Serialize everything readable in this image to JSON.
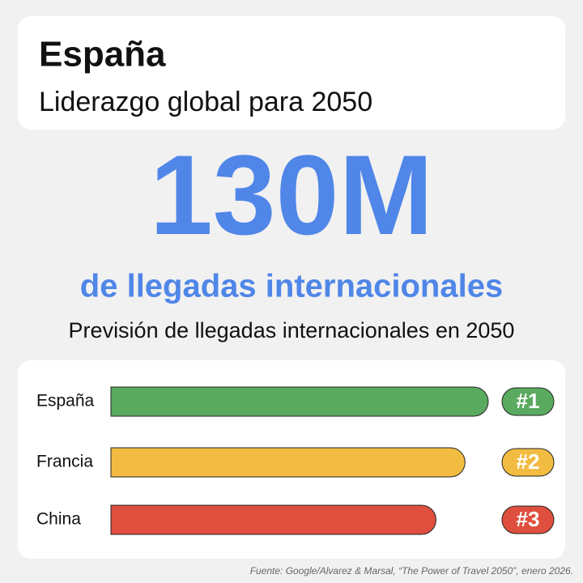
{
  "header": {
    "title": "España",
    "subtitle": "Liderazgo global para 2050"
  },
  "headline": {
    "figure": "130M",
    "label": "de llegadas internacionales"
  },
  "chart_data": {
    "type": "bar",
    "orientation": "horizontal",
    "title": "Previsión de llegadas internacionales en 2050",
    "categories": [
      "España",
      "Francia",
      "China"
    ],
    "values": [
      130,
      122,
      112
    ],
    "colors": [
      "#5aaa5f",
      "#f2bc42",
      "#df4f3e"
    ],
    "ranks": [
      "#1",
      "#2",
      "#3"
    ],
    "xlim": [
      0,
      130
    ]
  },
  "source": "Fuente: Google/Alvarez & Marsal, “The Power of Travel 2050”, enero 2026."
}
